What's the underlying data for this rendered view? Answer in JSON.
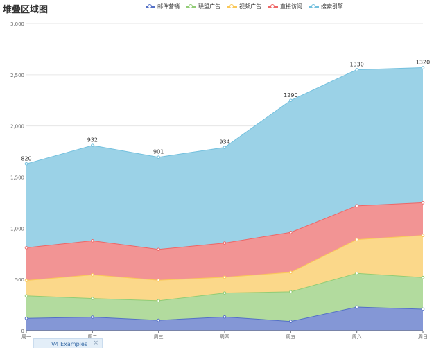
{
  "chart_data": {
    "type": "area",
    "stacked": true,
    "title": "堆叠区域图",
    "categories": [
      "周一",
      "周二",
      "周三",
      "周四",
      "周五",
      "周六",
      "周日"
    ],
    "ylim": [
      0,
      3000
    ],
    "yticks": [
      "0",
      "500",
      "1,000",
      "1,500",
      "2,000",
      "2,500",
      "3,000"
    ],
    "legend_position": "top-center",
    "series": [
      {
        "name": "邮件营销",
        "color": "#5470c6",
        "fill": "#8497d6",
        "values": [
          120,
          132,
          101,
          134,
          90,
          230,
          210
        ]
      },
      {
        "name": "联盟广告",
        "color": "#91cc75",
        "fill": "#b2db9e",
        "values": [
          220,
          182,
          191,
          234,
          290,
          330,
          310
        ]
      },
      {
        "name": "视频广告",
        "color": "#fac858",
        "fill": "#fbd88a",
        "values": [
          150,
          232,
          201,
          154,
          190,
          330,
          410
        ]
      },
      {
        "name": "直接访问",
        "color": "#ee6666",
        "fill": "#f29494",
        "values": [
          320,
          332,
          301,
          334,
          390,
          330,
          320
        ]
      },
      {
        "name": "搜索引擎",
        "color": "#73c0de",
        "fill": "#9bd2e7",
        "values": [
          820,
          932,
          901,
          934,
          1290,
          1330,
          1320
        ],
        "data_labels": [
          "820",
          "932",
          "901",
          "934",
          "1290",
          "1330",
          "1320"
        ]
      }
    ]
  },
  "footer_tab": {
    "label": "V4 Examples",
    "close": "×"
  }
}
